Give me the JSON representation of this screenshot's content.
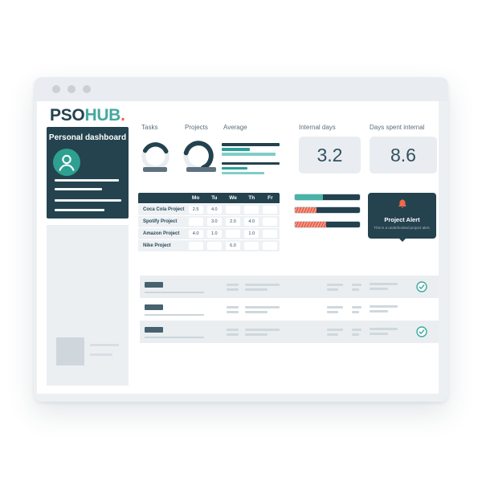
{
  "colors": {
    "dark_teal": "#24434f",
    "teal": "#45a8a0",
    "light_teal": "#80cdc5",
    "coral": "#ef6348",
    "card_gray": "#e9edf1"
  },
  "logo": {
    "part1": "PSO",
    "part2": "HUB",
    "dot": "."
  },
  "sidebar": {
    "title": "Personal dashboard",
    "avatar_icon": "person-icon",
    "menu_placeholder_line_widths": [
      80,
      59,
      83,
      62
    ]
  },
  "stats": {
    "tasks": {
      "label": "Tasks"
    },
    "projects": {
      "label": "Projects"
    },
    "average": {
      "label": "Average"
    },
    "internal_days": {
      "label": "Internal days",
      "value": "3.2"
    },
    "days_spent_internal": {
      "label": "Days spent internal",
      "value": "8.6"
    }
  },
  "alert": {
    "icon": "bell-icon",
    "title": "Project Alert",
    "subtitle": "This is a underbooked project alert."
  },
  "task_list": {
    "rows": [
      {
        "completed": true
      },
      {
        "completed": false
      },
      {
        "completed": true
      }
    ]
  },
  "chart_data": [
    {
      "id": "tasks_donut",
      "type": "pie",
      "title": "Tasks",
      "labels": [
        "filled",
        "remaining"
      ],
      "values": [
        35,
        65
      ],
      "colors": [
        "#24414e",
        "#e9edf0"
      ]
    },
    {
      "id": "projects_donut",
      "type": "pie",
      "title": "Projects",
      "labels": [
        "filled",
        "remaining"
      ],
      "values": [
        65,
        35
      ],
      "colors": [
        "#24414e",
        "#e9edf0"
      ]
    },
    {
      "id": "average_bars",
      "type": "bar",
      "title": "Average",
      "orientation": "horizontal",
      "values_pct": [
        100,
        48,
        93,
        100,
        44,
        73
      ],
      "colors": [
        "#24414e",
        "#2aa096",
        "#80cdc5",
        "#24414e",
        "#2aa096",
        "#80cdc5"
      ]
    },
    {
      "id": "capacity_bars",
      "type": "bar",
      "orientation": "horizontal",
      "track_color": "#24414e",
      "series": [
        {
          "name": "bar1",
          "fill_pct": 43,
          "style": "teal"
        },
        {
          "name": "bar2",
          "fill_pct": 33,
          "style": "coral-striped"
        },
        {
          "name": "bar3",
          "fill_pct": 48,
          "style": "coral-striped"
        }
      ]
    },
    {
      "id": "timesheet",
      "type": "table",
      "columns": [
        "",
        "Mo",
        "Tu",
        "We",
        "Th",
        "Fr"
      ],
      "rows": [
        [
          "Coca Cola Project",
          "2.5",
          "4.0",
          "",
          "",
          ""
        ],
        [
          "Spotify Project",
          "",
          "3.0",
          "2.0",
          "4.0",
          ""
        ],
        [
          "Amazon Project",
          "4.0",
          "1.0",
          "",
          "1.0",
          ""
        ],
        [
          "Nike Project",
          "",
          "",
          "6.0",
          "",
          ""
        ]
      ]
    }
  ]
}
